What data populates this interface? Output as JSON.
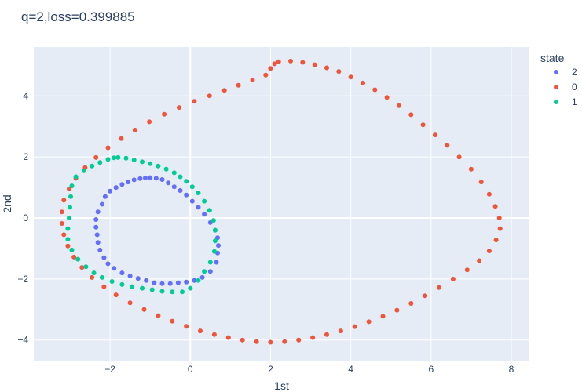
{
  "chart_data": {
    "type": "scatter",
    "title": "q=2,loss=0.399885",
    "xlabel": "1st",
    "ylabel": "2nd",
    "xlim": [
      -3.9,
      8.45
    ],
    "ylim": [
      -4.7,
      5.6
    ],
    "x_ticks": [
      -2,
      0,
      2,
      4,
      6,
      8
    ],
    "y_ticks": [
      -4,
      -2,
      0,
      2,
      4
    ],
    "grid": true,
    "legend_title": "state",
    "legend_position": "right",
    "series": [
      {
        "name": "2",
        "color": "#636efa",
        "points": [
          [
            -1.0,
            1.32
          ],
          [
            -0.85,
            1.3
          ],
          [
            -0.7,
            1.26
          ],
          [
            -0.55,
            1.15
          ],
          [
            -0.4,
            1.02
          ],
          [
            -0.25,
            0.9
          ],
          [
            -0.1,
            0.75
          ],
          [
            0.05,
            0.55
          ],
          [
            0.2,
            0.35
          ],
          [
            0.35,
            0.12
          ],
          [
            0.5,
            -0.15
          ],
          [
            0.62,
            -0.4
          ],
          [
            0.68,
            -0.65
          ],
          [
            0.7,
            -0.9
          ],
          [
            0.68,
            -1.15
          ],
          [
            0.65,
            -1.45
          ],
          [
            0.5,
            -1.75
          ],
          [
            0.3,
            -1.95
          ],
          [
            0.1,
            -2.05
          ],
          [
            -0.1,
            -2.1
          ],
          [
            -0.3,
            -2.12
          ],
          [
            -0.5,
            -2.15
          ],
          [
            -0.7,
            -2.15
          ],
          [
            -0.9,
            -2.12
          ],
          [
            -1.1,
            -2.05
          ],
          [
            -1.3,
            -1.98
          ],
          [
            -1.5,
            -1.9
          ],
          [
            -1.7,
            -1.8
          ],
          [
            -1.9,
            -1.65
          ],
          [
            -2.05,
            -1.5
          ],
          [
            -2.15,
            -1.3
          ],
          [
            -2.25,
            -1.05
          ],
          [
            -2.3,
            -0.8
          ],
          [
            -2.32,
            -0.55
          ],
          [
            -2.35,
            -0.3
          ],
          [
            -2.35,
            -0.05
          ],
          [
            -2.3,
            0.2
          ],
          [
            -2.2,
            0.45
          ],
          [
            -2.12,
            0.7
          ],
          [
            -2.0,
            0.88
          ],
          [
            -1.85,
            1.0
          ],
          [
            -1.7,
            1.1
          ],
          [
            -1.55,
            1.18
          ],
          [
            -1.4,
            1.25
          ],
          [
            -1.25,
            1.29
          ],
          [
            -1.12,
            1.31
          ]
        ]
      },
      {
        "name": "0",
        "color": "#ef553b",
        "points": [
          [
            2.2,
            5.12
          ],
          [
            2.5,
            5.14
          ],
          [
            2.8,
            5.1
          ],
          [
            3.1,
            5.02
          ],
          [
            3.4,
            4.92
          ],
          [
            3.7,
            4.8
          ],
          [
            4.0,
            4.62
          ],
          [
            4.3,
            4.42
          ],
          [
            4.6,
            4.2
          ],
          [
            4.9,
            3.95
          ],
          [
            5.2,
            3.68
          ],
          [
            5.5,
            3.38
          ],
          [
            5.8,
            3.05
          ],
          [
            6.1,
            2.72
          ],
          [
            6.4,
            2.38
          ],
          [
            6.7,
            2.0
          ],
          [
            7.0,
            1.6
          ],
          [
            7.25,
            1.18
          ],
          [
            7.45,
            0.78
          ],
          [
            7.6,
            0.38
          ],
          [
            7.7,
            0.0
          ],
          [
            7.72,
            -0.35
          ],
          [
            7.62,
            -0.72
          ],
          [
            7.45,
            -1.08
          ],
          [
            7.2,
            -1.4
          ],
          [
            6.9,
            -1.7
          ],
          [
            6.55,
            -2.0
          ],
          [
            6.2,
            -2.28
          ],
          [
            5.85,
            -2.55
          ],
          [
            5.5,
            -2.8
          ],
          [
            5.15,
            -3.02
          ],
          [
            4.8,
            -3.22
          ],
          [
            4.45,
            -3.4
          ],
          [
            4.1,
            -3.56
          ],
          [
            3.75,
            -3.7
          ],
          [
            3.4,
            -3.82
          ],
          [
            3.05,
            -3.92
          ],
          [
            2.7,
            -4.0
          ],
          [
            2.35,
            -4.05
          ],
          [
            2.0,
            -4.07
          ],
          [
            1.65,
            -4.05
          ],
          [
            1.3,
            -4.0
          ],
          [
            0.95,
            -3.92
          ],
          [
            0.6,
            -3.82
          ],
          [
            0.25,
            -3.7
          ],
          [
            -0.1,
            -3.55
          ],
          [
            -0.45,
            -3.38
          ],
          [
            -0.8,
            -3.2
          ],
          [
            -1.15,
            -3.0
          ],
          [
            -1.5,
            -2.78
          ],
          [
            -1.85,
            -2.52
          ],
          [
            -2.15,
            -2.25
          ],
          [
            -2.45,
            -1.95
          ],
          [
            -2.7,
            -1.62
          ],
          [
            -2.9,
            -1.28
          ],
          [
            -3.05,
            -0.92
          ],
          [
            -3.15,
            -0.55
          ],
          [
            -3.2,
            -0.18
          ],
          [
            -3.2,
            0.2
          ],
          [
            -3.15,
            0.58
          ],
          [
            -3.02,
            0.95
          ],
          [
            -2.85,
            1.3
          ],
          [
            -2.62,
            1.65
          ],
          [
            -2.35,
            1.98
          ],
          [
            -2.05,
            2.3
          ],
          [
            -1.72,
            2.6
          ],
          [
            -1.38,
            2.88
          ],
          [
            -1.02,
            3.15
          ],
          [
            -0.65,
            3.4
          ],
          [
            -0.28,
            3.62
          ],
          [
            0.1,
            3.82
          ],
          [
            0.48,
            4.0
          ],
          [
            0.85,
            4.18
          ],
          [
            1.2,
            4.35
          ],
          [
            1.55,
            4.52
          ],
          [
            1.88,
            4.68
          ],
          [
            2.0,
            4.9
          ],
          [
            2.1,
            5.05
          ]
        ]
      },
      {
        "name": "1",
        "color": "#00cc96",
        "points": [
          [
            -1.8,
            1.98
          ],
          [
            -1.6,
            1.96
          ],
          [
            -1.4,
            1.9
          ],
          [
            -1.2,
            1.84
          ],
          [
            -1.0,
            1.78
          ],
          [
            -0.8,
            1.7
          ],
          [
            -0.6,
            1.6
          ],
          [
            -0.4,
            1.48
          ],
          [
            -0.25,
            1.35
          ],
          [
            -0.1,
            1.2
          ],
          [
            0.05,
            1.02
          ],
          [
            0.2,
            0.82
          ],
          [
            0.35,
            0.55
          ],
          [
            0.48,
            0.25
          ],
          [
            0.58,
            -0.08
          ],
          [
            0.62,
            -0.4
          ],
          [
            0.62,
            -0.75
          ],
          [
            0.6,
            -1.1
          ],
          [
            0.5,
            -1.45
          ],
          [
            0.35,
            -1.75
          ],
          [
            0.2,
            -2.05
          ],
          [
            0.0,
            -2.3
          ],
          [
            -0.2,
            -2.42
          ],
          [
            -0.45,
            -2.42
          ],
          [
            -0.7,
            -2.4
          ],
          [
            -0.95,
            -2.35
          ],
          [
            -1.2,
            -2.3
          ],
          [
            -1.45,
            -2.25
          ],
          [
            -1.7,
            -2.18
          ],
          [
            -1.95,
            -2.08
          ],
          [
            -2.2,
            -1.95
          ],
          [
            -2.4,
            -1.8
          ],
          [
            -2.6,
            -1.6
          ],
          [
            -2.8,
            -1.35
          ],
          [
            -2.95,
            -1.05
          ],
          [
            -3.05,
            -0.7
          ],
          [
            -3.05,
            -0.35
          ],
          [
            -3.02,
            0.0
          ],
          [
            -3.0,
            0.35
          ],
          [
            -2.98,
            0.7
          ],
          [
            -2.95,
            1.05
          ],
          [
            -2.85,
            1.35
          ],
          [
            -2.65,
            1.55
          ],
          [
            -2.45,
            1.7
          ],
          [
            -2.25,
            1.82
          ],
          [
            -2.05,
            1.92
          ],
          [
            -1.9,
            1.97
          ]
        ]
      }
    ]
  }
}
